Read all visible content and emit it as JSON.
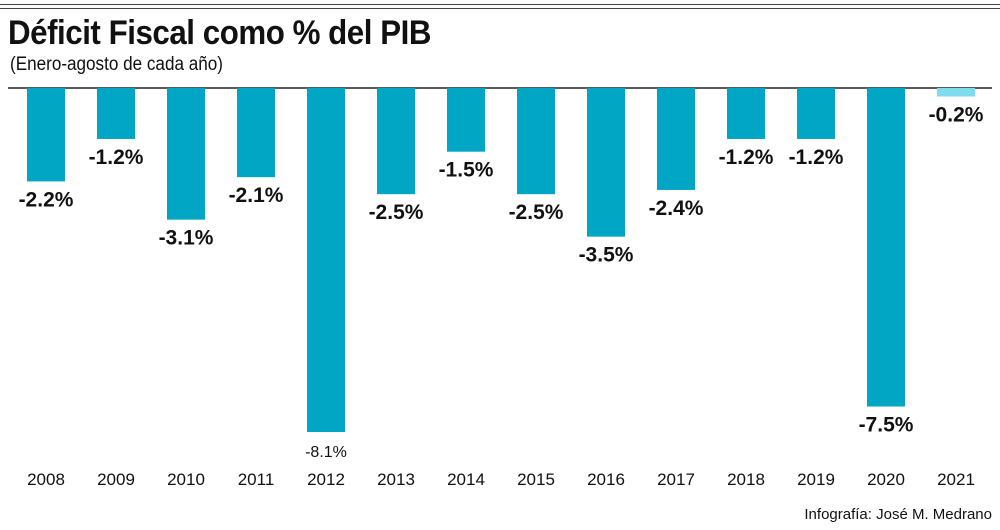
{
  "title": "Déficit Fiscal como % del PIB",
  "subtitle": "(Enero-agosto de cada año)",
  "credit": "Infografía: José M. Medrano",
  "colors": {
    "bar": "#00a6c4",
    "bar_highlight": "#7fdced",
    "text": "#111111"
  },
  "chart_data": {
    "type": "bar",
    "title": "Déficit Fiscal como % del PIB",
    "subtitle": "(Enero-agosto de cada año)",
    "categories": [
      "2008",
      "2009",
      "2010",
      "2011",
      "2012",
      "2013",
      "2014",
      "2015",
      "2016",
      "2017",
      "2018",
      "2019",
      "2020",
      "2021"
    ],
    "values": [
      -2.2,
      -1.2,
      -3.1,
      -2.1,
      -8.1,
      -2.5,
      -1.5,
      -2.5,
      -3.5,
      -2.4,
      -1.2,
      -1.2,
      -7.5,
      -0.2
    ],
    "value_labels": [
      "-2.2%",
      "-1.2%",
      "-3.1%",
      "-2.1%",
      "-8.1%",
      "-2.5%",
      "-1.5%",
      "-2.5%",
      "-3.5%",
      "-2.4%",
      "-1.2%",
      "-1.2%",
      "-7.5%",
      "-0.2%"
    ],
    "highlight_index": 13,
    "ylim": [
      -8.1,
      0
    ],
    "xlabel": "",
    "ylabel": "",
    "grid": false,
    "legend": "none"
  }
}
